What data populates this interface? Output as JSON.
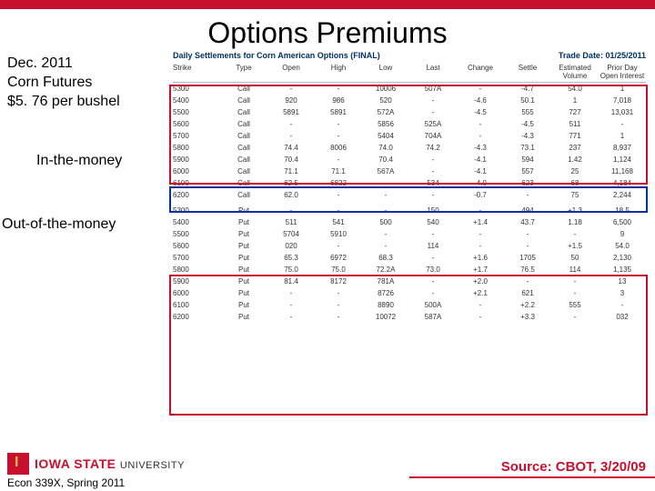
{
  "title": "Options Premiums",
  "context": {
    "line1": "Dec. 2011",
    "line2": "Corn Futures",
    "line3": "$5. 76 per bushel"
  },
  "label_itm": "In-the-money",
  "label_otm": "Out-of-the-money",
  "table": {
    "header_left": "Daily Settlements for Corn American Options (FINAL)",
    "header_right": "Trade Date: 01/25/2011",
    "columns": [
      "Strike",
      "Type",
      "Open",
      "High",
      "Low",
      "Last",
      "Change",
      "Settle",
      "Estimated Volume",
      "Prior Day Open Interest"
    ],
    "rows": [
      [
        "5300",
        "Call",
        "-",
        "-",
        "10006",
        "507A",
        "-",
        "-4.7",
        "54.0",
        "1",
        "7,414"
      ],
      [
        "5400",
        "Call",
        "920",
        "986",
        "520",
        "-",
        "-4.6",
        "50.1",
        "1",
        "7,018"
      ],
      [
        "5500",
        "Call",
        "5891",
        "5891",
        "572A",
        "-",
        "-4.5",
        "555",
        "727",
        "13,031"
      ],
      [
        "5600",
        "Call",
        "-",
        "-",
        "5856",
        "525A",
        "-",
        "-4.5",
        "511",
        "-",
        "2,504"
      ],
      [
        "5700",
        "Call",
        "-",
        "-",
        "5404",
        "704A",
        "-",
        "-4.3",
        "771",
        "1",
        "4,291"
      ],
      [
        "5800",
        "Call",
        "74.4",
        "8006",
        "74.0",
        "74.2",
        "-4.3",
        "73.1",
        "237",
        "8,937"
      ],
      [
        "5900",
        "Call",
        "70.4",
        "-",
        "70.4",
        "-",
        "-4.1",
        "594",
        "1.42",
        "1,124"
      ],
      [
        "6000",
        "Call",
        "71.1",
        "71.1",
        "567A",
        "-",
        "-4.1",
        "557",
        "25",
        "11,168"
      ],
      [
        "6100",
        "Call",
        "62.5",
        "6822",
        "-",
        "534",
        "-4.0",
        "623",
        "68",
        "4,184"
      ],
      [
        "6200",
        "Call",
        "62.0",
        "-",
        "-",
        "-",
        "-0.7",
        "-",
        "75",
        "2,244"
      ],
      [
        "",
        "",
        "",
        "",
        "",
        "",
        "",
        "",
        "",
        ""
      ],
      [
        "5300",
        "Put",
        "-",
        "-",
        "-",
        "150",
        "-",
        "494",
        "+1.3",
        "18.5",
        "159",
        "11,570"
      ],
      [
        "5400",
        "Put",
        "511",
        "541",
        "500",
        "540",
        "+1.4",
        "43.7",
        "1.18",
        "6,500"
      ],
      [
        "5500",
        "Put",
        "5704",
        "5910",
        "-",
        "-",
        "-",
        "-",
        "-",
        "9",
        "4,031"
      ],
      [
        "5600",
        "Put",
        "020",
        "-",
        "-",
        "114",
        "-",
        "-",
        "+1.5",
        "54.0",
        "102",
        "2,070"
      ],
      [
        "5700",
        "Put",
        "65.3",
        "6972",
        "68.3",
        "-",
        "+1.6",
        "1705",
        "50",
        "2,130"
      ],
      [
        "5800",
        "Put",
        "75.0",
        "75.0",
        "72.2A",
        "73.0",
        "+1.7",
        "76.5",
        "114",
        "1,135"
      ],
      [
        "5900",
        "Put",
        "81.4",
        "8172",
        "781A",
        "-",
        "+2.0",
        "-",
        "-",
        "13",
        "826"
      ],
      [
        "6000",
        "Put",
        "-",
        "-",
        "8726",
        "-",
        "+2.1",
        "621",
        "-",
        "3",
        "1,564"
      ],
      [
        "6100",
        "Put",
        "-",
        "-",
        "8890",
        "500A",
        "-",
        "+2.2",
        "555",
        "-",
        "14"
      ],
      [
        "6200",
        "Put",
        "-",
        "-",
        "10072",
        "587A",
        "-",
        "+3.3",
        "-",
        "032",
        "-",
        "28"
      ]
    ]
  },
  "logo": {
    "name": "IOWA STATE",
    "sub": "UNIVERSITY"
  },
  "course": "Econ 339X, Spring 2011",
  "source": "Source: CBOT, 3/20/09",
  "colors": {
    "red": "#c8102e",
    "blue": "#0033a0",
    "gold": "#f1be48"
  }
}
